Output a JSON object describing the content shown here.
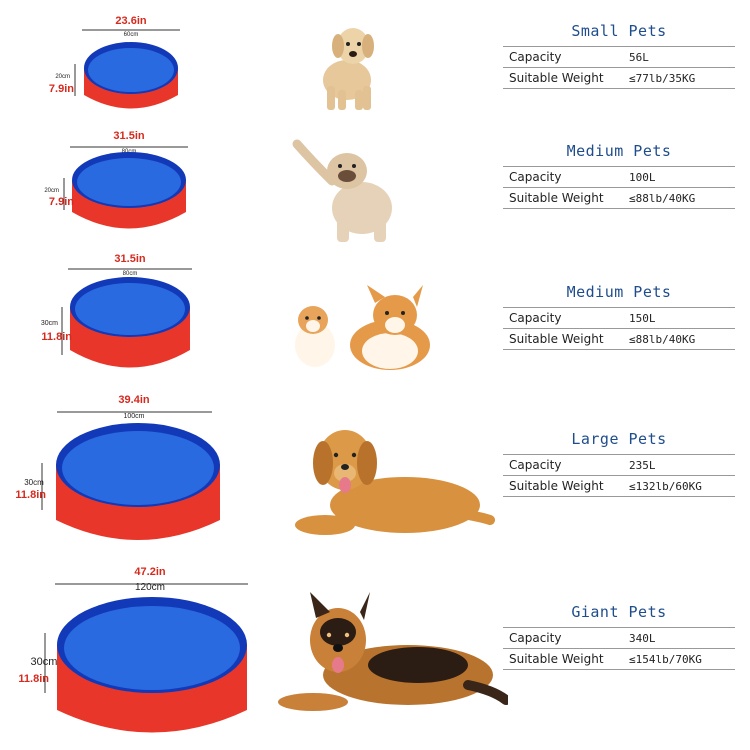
{
  "rows": [
    {
      "title": "Small Pets",
      "capacity_label": "Capacity",
      "capacity": "56L",
      "weight_label": "Suitable Weight",
      "weight": "≤77lb/35KG",
      "width_in": "23.6in",
      "width_cm": "60cm",
      "height_cm": "20cm",
      "height_in": "7.9in",
      "dog": "puppy"
    },
    {
      "title": "Medium Pets",
      "capacity_label": "Capacity",
      "capacity": "100L",
      "weight_label": "Suitable Weight",
      "weight": "≤88lb/40KG",
      "width_in": "31.5in",
      "width_cm": "80cm",
      "height_cm": "20cm",
      "height_in": "7.9in",
      "dog": "bulldog"
    },
    {
      "title": "Medium Pets",
      "capacity_label": "Capacity",
      "capacity": "150L",
      "weight_label": "Suitable Weight",
      "weight": "≤88lb/40KG",
      "width_in": "31.5in",
      "width_cm": "80cm",
      "height_cm": "30cm",
      "height_in": "11.8in",
      "dog": "corgi"
    },
    {
      "title": "Large Pets",
      "capacity_label": "Capacity",
      "capacity": "235L",
      "weight_label": "Suitable Weight",
      "weight": "≤132lb/60KG",
      "width_in": "39.4in",
      "width_cm": "100cm",
      "height_cm": "30cm",
      "height_in": "11.8in",
      "dog": "golden-retriever"
    },
    {
      "title": "Giant Pets",
      "capacity_label": "Capacity",
      "capacity": "340L",
      "weight_label": "Suitable Weight",
      "weight": "≤154lb/70KG",
      "width_in": "47.2in",
      "width_cm": "120cm",
      "height_cm": "30cm",
      "height_in": "11.8in",
      "dog": "german-shepherd"
    }
  ],
  "colors": {
    "pool_wall": "#e8372a",
    "pool_water": "#1f4fd6",
    "pool_rim": "#1239b8",
    "dim_red": "#d62a1e",
    "title_blue": "#1f4d8c"
  }
}
